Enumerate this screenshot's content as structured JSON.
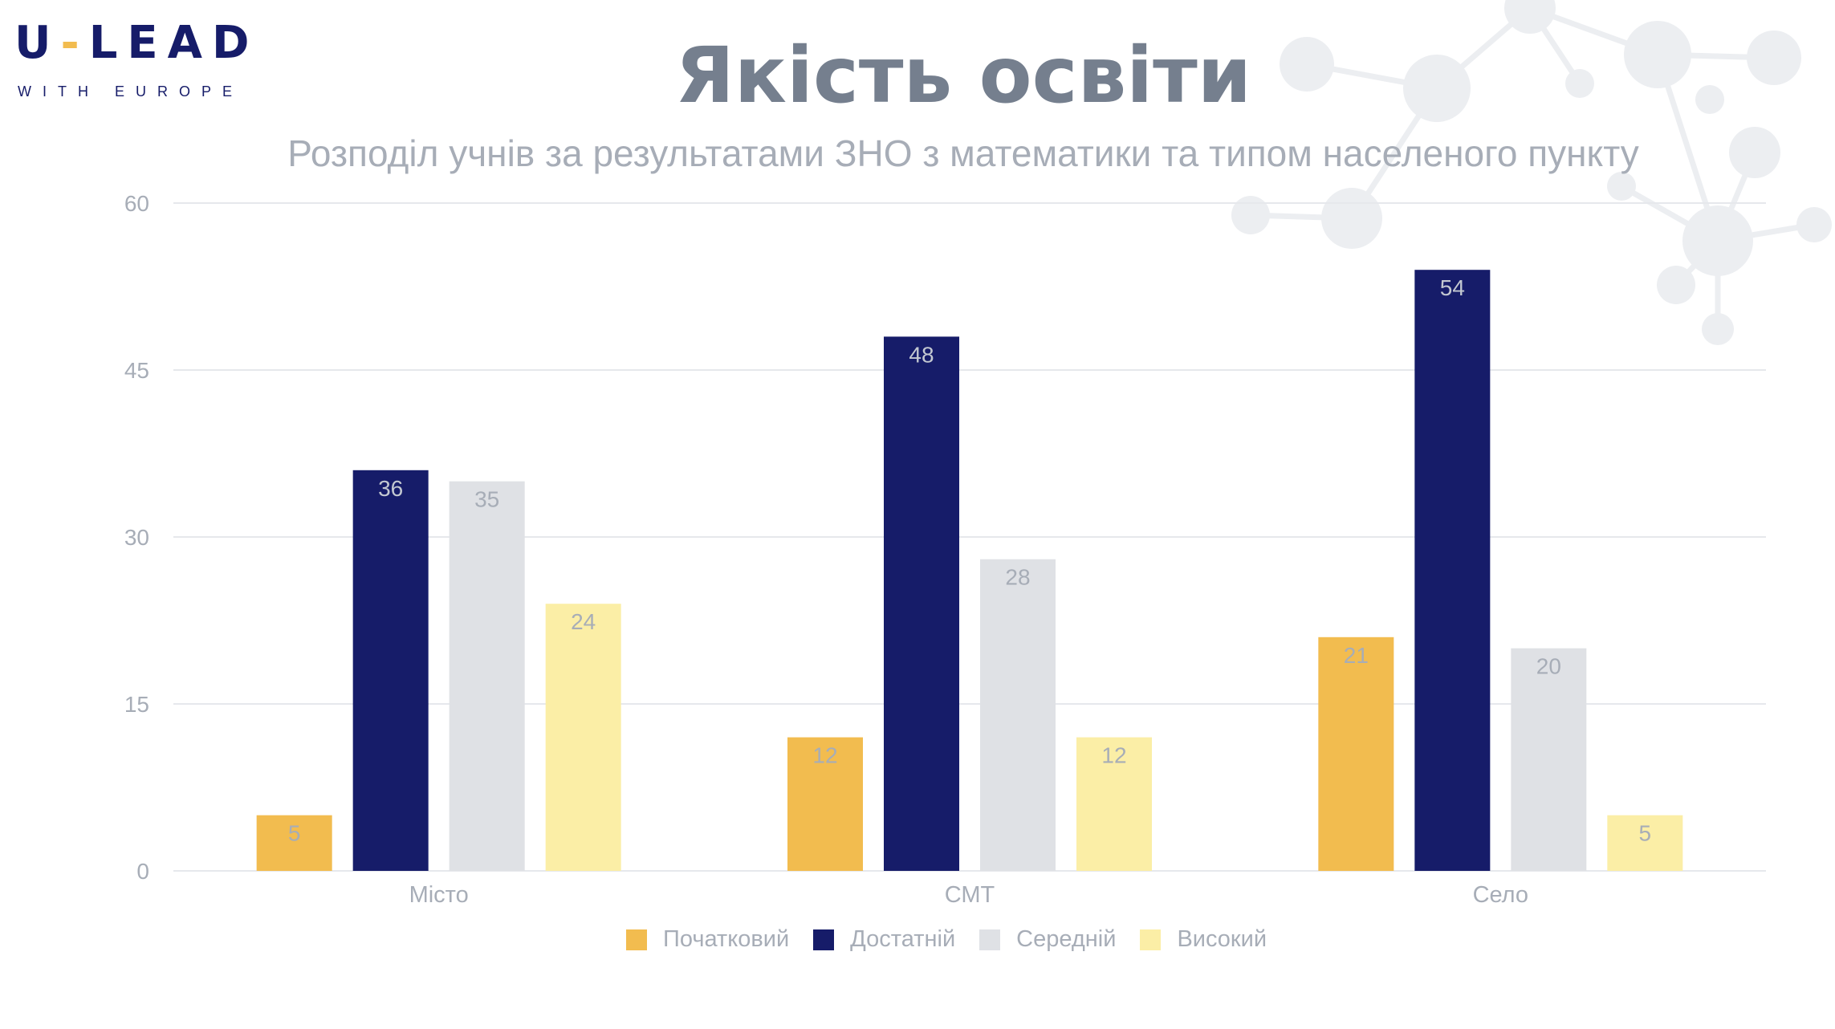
{
  "logo": {
    "brand_left": "U",
    "brand_dash": "-",
    "brand_right": "LEAD",
    "tagline": "WITH EUROPE"
  },
  "title": "Якість освіти",
  "subtitle": "Розподіл учнів за результатами ЗНО з математики та типом населеного пункту",
  "colors": {
    "initial": "#f2bc4f",
    "sufficient": "#161c69",
    "middle": "#dfe1e5",
    "high": "#fbeea6",
    "label_light": "#a7adb7",
    "label_dark": "#c3c8d1",
    "grid": "#e6e8ec"
  },
  "chart_data": {
    "type": "bar",
    "title": "Розподіл учнів за результатами ЗНО з математики та типом населеного пункту",
    "categories": [
      "Місто",
      "СМТ",
      "Село"
    ],
    "series": [
      {
        "name": "Початковий",
        "values": [
          5,
          12,
          21
        ]
      },
      {
        "name": "Достатній",
        "values": [
          36,
          48,
          54
        ]
      },
      {
        "name": "Середній",
        "values": [
          35,
          28,
          20
        ]
      },
      {
        "name": "Високий",
        "values": [
          24,
          12,
          5
        ]
      }
    ],
    "ylim": [
      0,
      60
    ],
    "yticks": [
      "0",
      "15",
      "30",
      "45",
      "60"
    ],
    "xlabel": "",
    "ylabel": "",
    "grid": true,
    "legend_position": "bottom"
  }
}
